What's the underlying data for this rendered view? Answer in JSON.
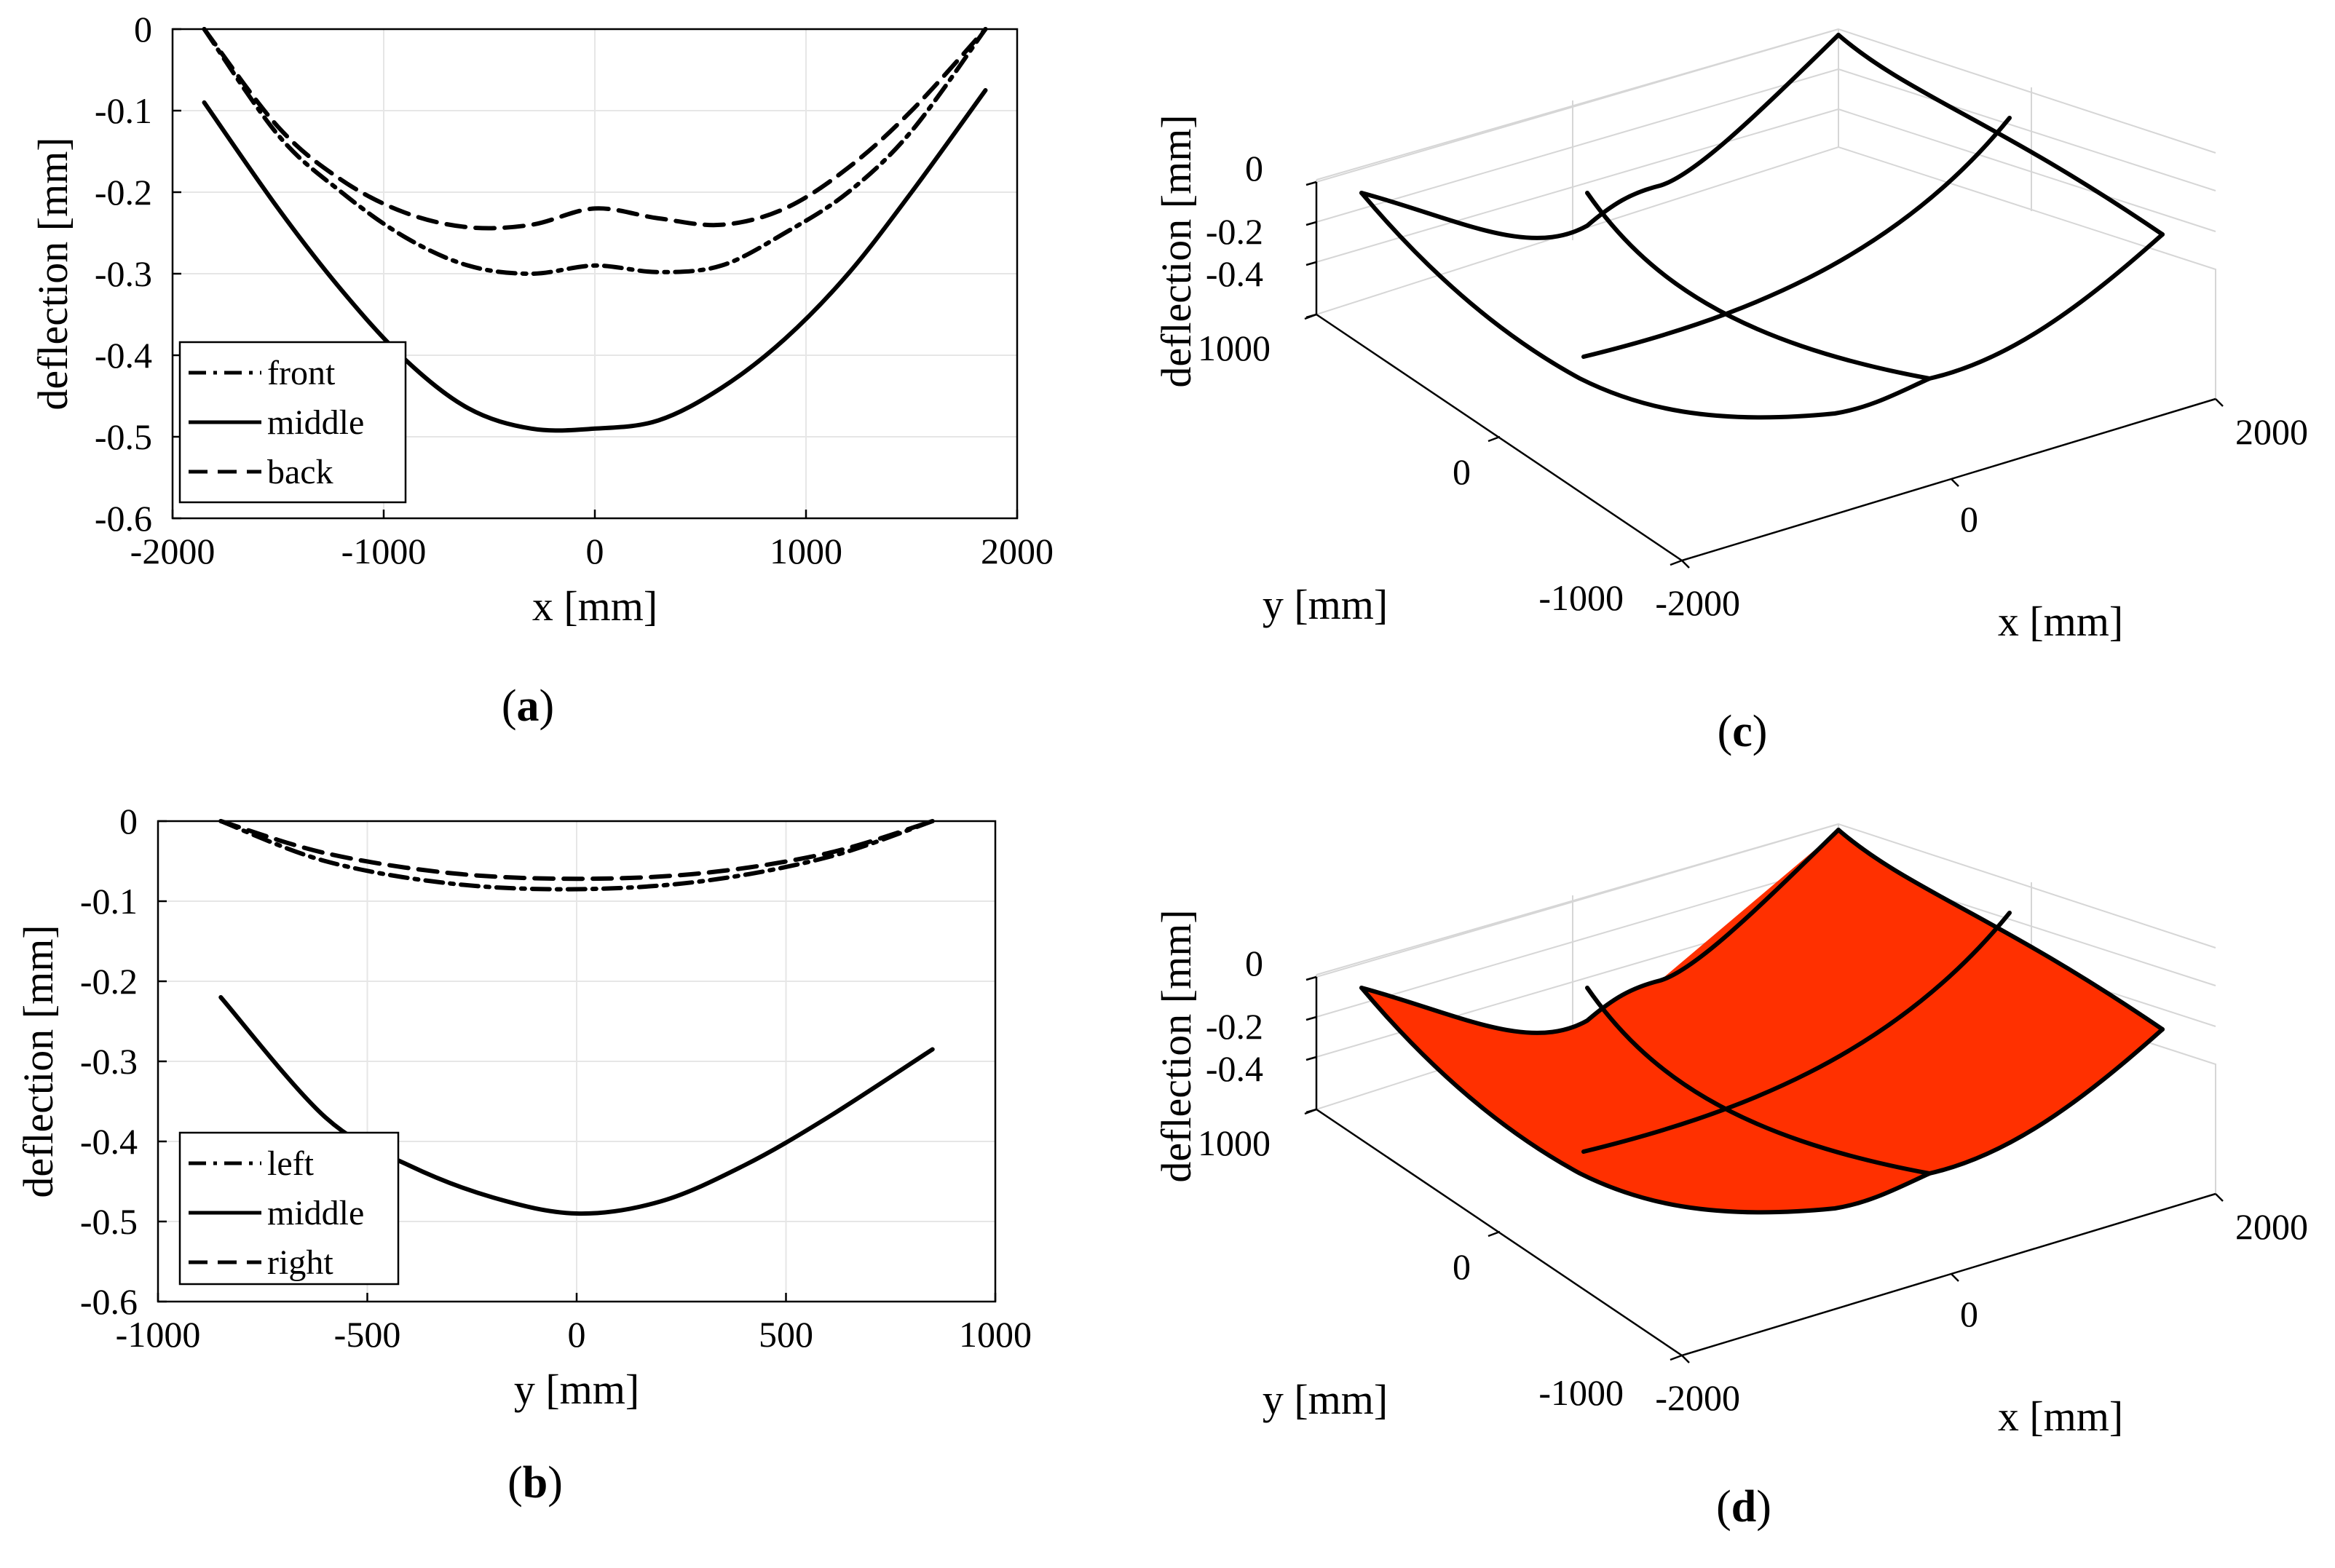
{
  "chart_data": [
    {
      "panel": "(a)",
      "panel_prefix": "(",
      "panel_letter": "a",
      "panel_suffix": ")",
      "type": "line",
      "xlabel": "x [mm]",
      "ylabel": "deflection [mm]",
      "xlim": [
        -2000,
        2000
      ],
      "ylim": [
        -0.6,
        0
      ],
      "xticks": [
        -2000,
        -1000,
        0,
        1000,
        2000
      ],
      "yticks": [
        -0.6,
        -0.5,
        -0.4,
        -0.3,
        -0.2,
        -0.1,
        0
      ],
      "grid": true,
      "legend_position": "bottom-left",
      "series": [
        {
          "name": "front",
          "style": "dashdot",
          "x": [
            -1850,
            -1500,
            -1200,
            -900,
            -600,
            -300,
            0,
            300,
            600,
            900,
            1200,
            1500,
            1850
          ],
          "y": [
            0,
            -0.13,
            -0.2,
            -0.255,
            -0.29,
            -0.3,
            -0.29,
            -0.298,
            -0.29,
            -0.25,
            -0.2,
            -0.125,
            0
          ]
        },
        {
          "name": "middle",
          "style": "solid",
          "x": [
            -1850,
            -1500,
            -1200,
            -900,
            -600,
            -300,
            0,
            300,
            600,
            900,
            1200,
            1500,
            1850
          ],
          "y": [
            -0.09,
            -0.22,
            -0.32,
            -0.405,
            -0.465,
            -0.49,
            -0.49,
            -0.48,
            -0.44,
            -0.38,
            -0.3,
            -0.2,
            -0.075
          ]
        },
        {
          "name": "back",
          "style": "dashed",
          "x": [
            -1850,
            -1500,
            -1200,
            -900,
            -600,
            -300,
            0,
            300,
            600,
            900,
            1200,
            1500,
            1850
          ],
          "y": [
            0,
            -0.12,
            -0.185,
            -0.225,
            -0.243,
            -0.24,
            -0.22,
            -0.232,
            -0.24,
            -0.22,
            -0.17,
            -0.1,
            0
          ]
        }
      ]
    },
    {
      "panel": "(b)",
      "panel_prefix": "(",
      "panel_letter": "b",
      "panel_suffix": ")",
      "type": "line",
      "xlabel": "y [mm]",
      "ylabel": "deflection [mm]",
      "xlim": [
        -1000,
        1000
      ],
      "ylim": [
        -0.6,
        0
      ],
      "xticks": [
        -1000,
        -500,
        0,
        500,
        1000
      ],
      "yticks": [
        -0.6,
        -0.5,
        -0.4,
        -0.3,
        -0.2,
        -0.1,
        0
      ],
      "grid": true,
      "legend_position": "bottom-left",
      "series": [
        {
          "name": "left",
          "style": "dashdot",
          "x": [
            -850,
            -600,
            -300,
            0,
            300,
            600,
            850
          ],
          "y": [
            0,
            -0.05,
            -0.078,
            -0.085,
            -0.075,
            -0.045,
            0
          ]
        },
        {
          "name": "middle",
          "style": "solid",
          "x": [
            -850,
            -600,
            -400,
            -200,
            0,
            200,
            400,
            600,
            850
          ],
          "y": [
            -0.22,
            -0.37,
            -0.43,
            -0.47,
            -0.49,
            -0.475,
            -0.43,
            -0.37,
            -0.285
          ]
        },
        {
          "name": "right",
          "style": "dashed",
          "x": [
            -850,
            -600,
            -300,
            0,
            300,
            600,
            850
          ],
          "y": [
            0,
            -0.04,
            -0.065,
            -0.072,
            -0.065,
            -0.04,
            0
          ]
        }
      ]
    },
    {
      "panel": "(c)",
      "panel_prefix": "(",
      "panel_letter": "c",
      "panel_suffix": ")",
      "type": "surface",
      "style": "wireframe",
      "xlabel": "x [mm]",
      "ylabel": "y [mm]",
      "zlabel": "deflection [mm]",
      "xticks": [
        -2000,
        0,
        2000
      ],
      "yticks": [
        -1000,
        0,
        1000
      ],
      "zticks": [
        0,
        -0.2,
        -0.4
      ],
      "zlim": [
        -0.5,
        0
      ],
      "grid": true
    },
    {
      "panel": "(d)",
      "panel_prefix": "(",
      "panel_letter": "d",
      "panel_suffix": ")",
      "type": "surface",
      "style": "filled-contour",
      "colormap": [
        "#00008f",
        "#0000ff",
        "#0060ff",
        "#00bfff",
        "#30ffcf",
        "#9fff60",
        "#ffef00",
        "#ff9000",
        "#ff3000"
      ],
      "xlabel": "x [mm]",
      "ylabel": "y [mm]",
      "zlabel": "deflection [mm]",
      "xticks": [
        -2000,
        0,
        2000
      ],
      "yticks": [
        -1000,
        0,
        1000
      ],
      "zticks": [
        0,
        -0.2,
        -0.4
      ],
      "zlim": [
        -0.5,
        0
      ],
      "grid": true
    }
  ]
}
